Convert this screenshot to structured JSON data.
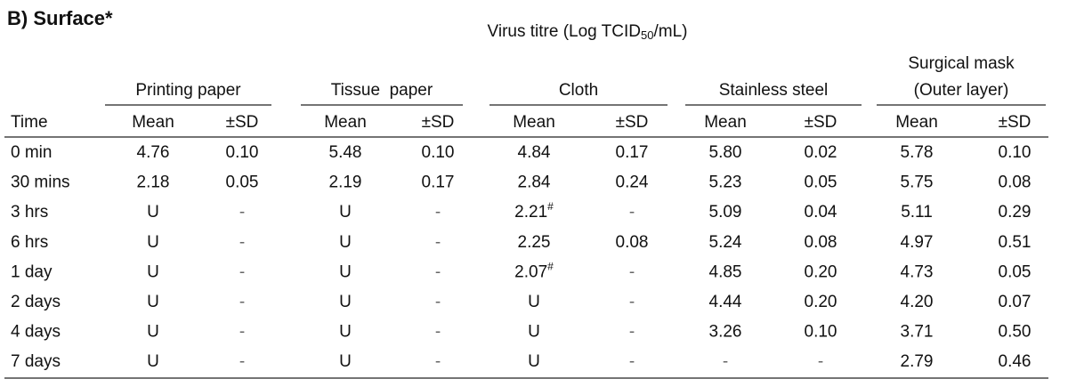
{
  "header": {
    "title": "B) Surface*",
    "caption": {
      "before": "Virus titre (Log TCID",
      "sub": "50",
      "after": "/mL)"
    }
  },
  "table": {
    "groups": [
      [
        "Printing paper"
      ],
      [
        "Tissue  paper"
      ],
      [
        "Cloth"
      ],
      [
        "Stainless steel"
      ],
      [
        "Surgical mask",
        "(Outer layer)"
      ]
    ],
    "columns": [
      "Time",
      "Mean",
      "±SD",
      "Mean",
      "±SD",
      "Mean",
      "±SD",
      "Mean",
      "±SD",
      "Mean",
      "±SD"
    ],
    "rows": [
      [
        "0 min",
        "4.76",
        "0.10",
        "5.48",
        "0.10",
        "4.84",
        "0.17",
        "5.80",
        "0.02",
        "5.78",
        "0.10"
      ],
      [
        "30 mins",
        "2.18",
        "0.05",
        "2.19",
        "0.17",
        "2.84",
        "0.24",
        "5.23",
        "0.05",
        "5.75",
        "0.08"
      ],
      [
        "3 hrs",
        "U",
        "-",
        "U",
        "-",
        {
          "value": "2.21",
          "note": "#"
        },
        "-",
        "5.09",
        "0.04",
        "5.11",
        "0.29"
      ],
      [
        "6 hrs",
        "U",
        "-",
        "U",
        "-",
        "2.25",
        "0.08",
        "5.24",
        "0.08",
        "4.97",
        "0.51"
      ],
      [
        "1 day",
        "U",
        "-",
        "U",
        "-",
        {
          "value": "2.07",
          "note": "#"
        },
        "-",
        "4.85",
        "0.20",
        "4.73",
        "0.05"
      ],
      [
        "2 days",
        "U",
        "-",
        "U",
        "-",
        "U",
        "-",
        "4.44",
        "0.20",
        "4.20",
        "0.07"
      ],
      [
        "4 days",
        "U",
        "-",
        "U",
        "-",
        "U",
        "-",
        "3.26",
        "0.10",
        "3.71",
        "0.50"
      ],
      [
        "7 days",
        "U",
        "-",
        "U",
        "-",
        "U",
        "-",
        "-",
        "-",
        "2.79",
        "0.46"
      ]
    ]
  }
}
